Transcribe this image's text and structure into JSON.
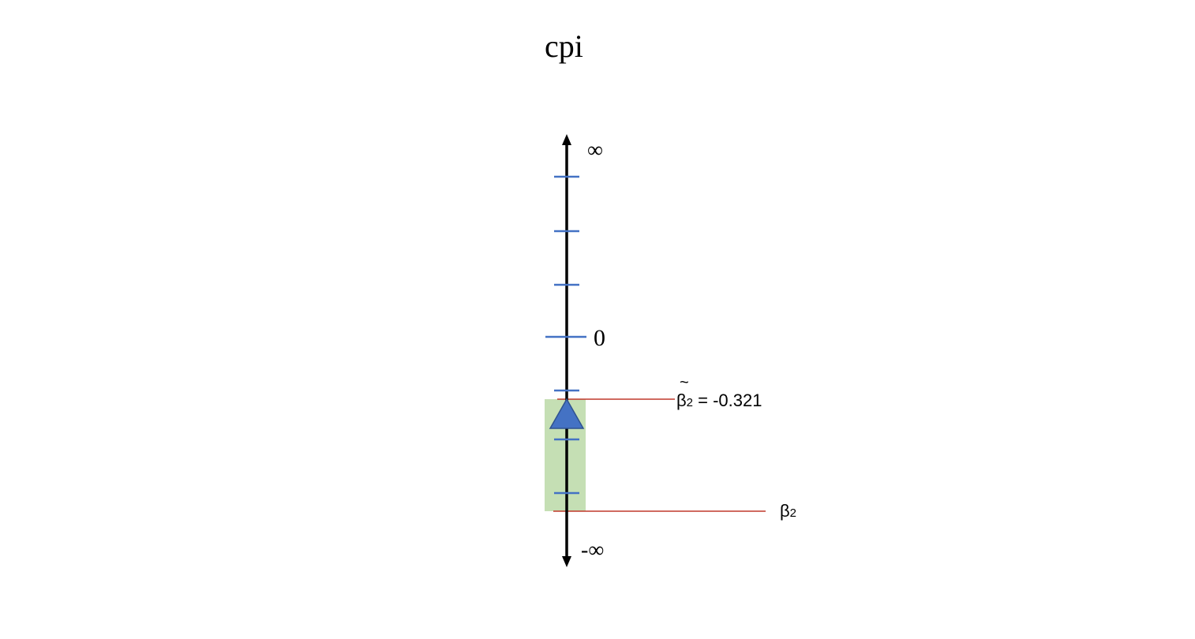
{
  "title": "cpi",
  "axis": {
    "top_label": "∞",
    "bottom_label": "-∞",
    "zero_label": "0"
  },
  "estimate": {
    "symbol": "β",
    "subscript": "2",
    "tilde": "~",
    "equals_text": " = -0.321",
    "value": -0.321
  },
  "true_param": {
    "symbol": "β",
    "subscript": "2"
  },
  "colors": {
    "axis": "#000000",
    "tick": "#4472c4",
    "marker_fill": "#4472c4",
    "marker_stroke": "#2f528f",
    "interval_fill": "#c5dfb4",
    "guide_line": "#c0392b"
  }
}
